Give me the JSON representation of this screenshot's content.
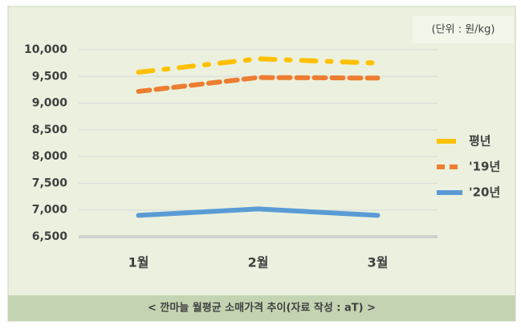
{
  "chart_data": {
    "type": "line",
    "unit_label": "(단위 : 원/kg)",
    "caption": "< 깐마늘 월평균 소매가격 추이(자료 작성 : aT) >",
    "categories": [
      "1월",
      "2월",
      "3월"
    ],
    "series": [
      {
        "name": "평년",
        "color": "#ffc000",
        "line_style": "dash-dot",
        "values": [
          9580,
          9830,
          9750
        ]
      },
      {
        "name": "'19년",
        "color": "#ed7d31",
        "line_style": "dash",
        "values": [
          9220,
          9480,
          9470
        ]
      },
      {
        "name": "'20년",
        "color": "#5b9bd5",
        "line_style": "solid",
        "values": [
          6900,
          7020,
          6900
        ]
      }
    ],
    "ylim": [
      6500,
      10000
    ],
    "yticks": [
      {
        "value": 6500,
        "label": "6,500"
      },
      {
        "value": 7000,
        "label": "7,000"
      },
      {
        "value": 7500,
        "label": "7,500"
      },
      {
        "value": 8000,
        "label": "8,000"
      },
      {
        "value": 8500,
        "label": "8,500"
      },
      {
        "value": 9000,
        "label": "9,000"
      },
      {
        "value": 9500,
        "label": "9,500"
      },
      {
        "value": 10000,
        "label": "10,000"
      }
    ],
    "grid": true,
    "legend": "right"
  }
}
